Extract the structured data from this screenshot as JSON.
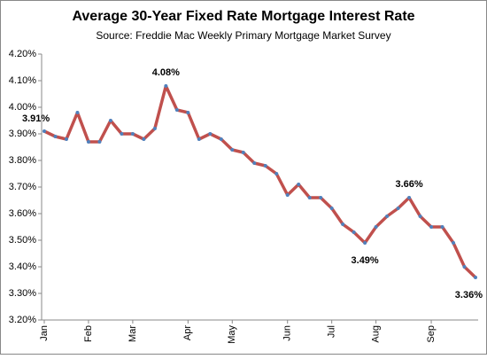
{
  "chart_data": {
    "type": "line",
    "title": "Average 30-Year Fixed Rate Mortgage Interest Rate",
    "subtitle": "Source:  Freddie  Mac  Weekly  Primary  Mortgage  Market  Survey",
    "categories": [
      "Jan",
      null,
      null,
      null,
      "Feb",
      null,
      null,
      null,
      "Mar",
      null,
      null,
      null,
      null,
      "Apr",
      null,
      null,
      null,
      "May",
      null,
      null,
      null,
      null,
      "Jun",
      null,
      null,
      null,
      "Jul",
      null,
      null,
      null,
      "Aug",
      null,
      null,
      null,
      null,
      "Sep",
      null,
      null,
      null,
      null
    ],
    "series": [
      {
        "color": "#c0504d",
        "marker_color": "#4f81bd",
        "values": [
          3.91,
          3.89,
          3.88,
          3.98,
          3.87,
          3.87,
          3.95,
          3.9,
          3.9,
          3.88,
          3.92,
          4.08,
          3.99,
          3.98,
          3.88,
          3.9,
          3.88,
          3.84,
          3.83,
          3.79,
          3.78,
          3.75,
          3.67,
          3.71,
          3.66,
          3.66,
          3.62,
          3.56,
          3.53,
          3.49,
          3.55,
          3.59,
          3.62,
          3.66,
          3.59,
          3.55,
          3.55,
          3.49,
          3.4,
          3.36
        ],
        "value_labels": [
          "3.91%",
          null,
          null,
          null,
          null,
          null,
          null,
          null,
          null,
          null,
          null,
          "4.08%",
          null,
          null,
          null,
          null,
          null,
          null,
          null,
          null,
          null,
          null,
          null,
          null,
          null,
          null,
          null,
          null,
          null,
          "3.49%",
          null,
          null,
          null,
          "3.66%",
          null,
          null,
          null,
          null,
          null,
          "3.36%"
        ]
      }
    ],
    "ylim": [
      3.2,
      4.2
    ],
    "yticks": [
      {
        "value": 3.2,
        "label": "3.20%"
      },
      {
        "value": 3.3,
        "label": "3.30%"
      },
      {
        "value": 3.4,
        "label": "3.40%"
      },
      {
        "value": 3.5,
        "label": "3.50%"
      },
      {
        "value": 3.6,
        "label": "3.60%"
      },
      {
        "value": 3.7,
        "label": "3.70%"
      },
      {
        "value": 3.8,
        "label": "3.80%"
      },
      {
        "value": 3.9,
        "label": "3.90%"
      },
      {
        "value": 4.0,
        "label": "4.00%"
      },
      {
        "value": 4.1,
        "label": "4.10%"
      },
      {
        "value": 4.2,
        "label": "4.20%"
      }
    ],
    "grid": false
  }
}
